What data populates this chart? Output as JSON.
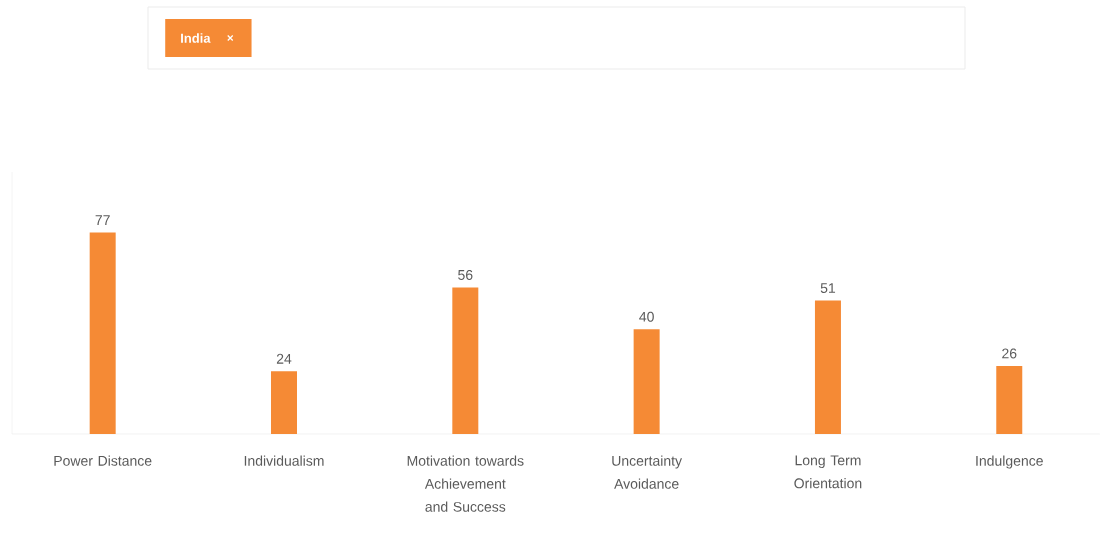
{
  "chart_data": {
    "type": "bar",
    "categories": [
      "Power Distance",
      "Individualism",
      "Motivation towards Achievement and Success",
      "Uncertainty Avoidance",
      "Long Term Orientation",
      "Indulgence"
    ],
    "series": [
      {
        "name": "India",
        "color": "#f58a35",
        "values": [
          77,
          24,
          56,
          40,
          51,
          26
        ]
      }
    ],
    "data_labels": true,
    "legend": "top left",
    "grid": false
  }
}
